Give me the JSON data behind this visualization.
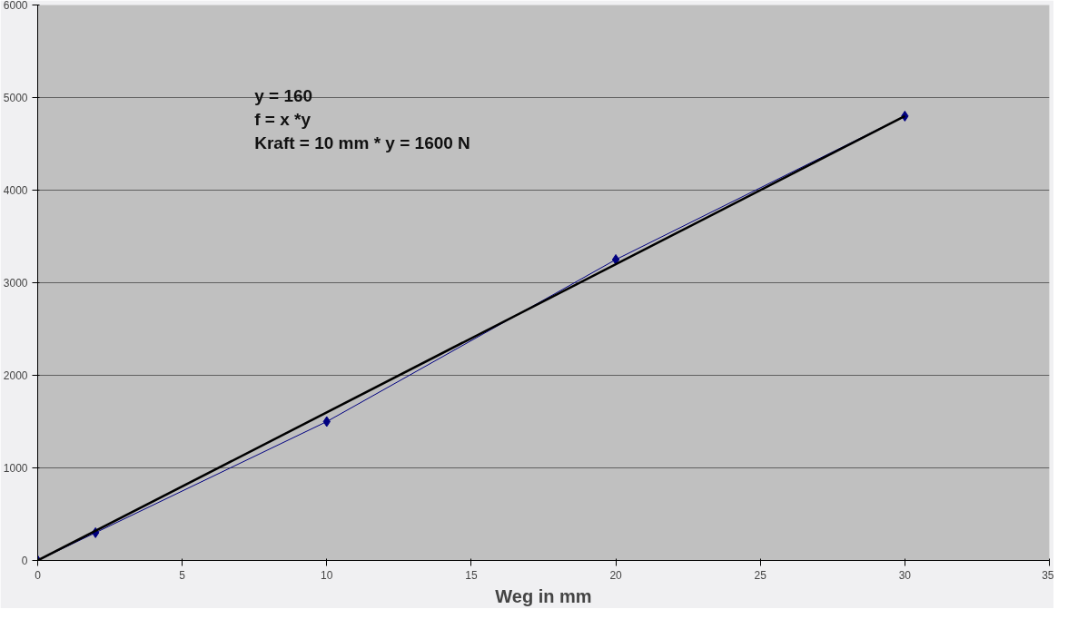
{
  "chart_data": {
    "type": "line",
    "xlabel": "Weg in mm",
    "annotations": [
      "y = 160",
      "f = x *y",
      "Kraft = 10 mm * y = 1600 N"
    ],
    "x": [
      0,
      2,
      10,
      20,
      30
    ],
    "series": [
      {
        "color": "#000080",
        "values": [
          0,
          300,
          1500,
          3250,
          4800
        ],
        "marker": "diamond"
      },
      {
        "type": "line",
        "color": "#000000",
        "x": [
          0,
          30
        ],
        "values": [
          0,
          4800
        ],
        "marker": "none"
      }
    ],
    "xlim": [
      0,
      35
    ],
    "xticks": [
      0,
      5,
      10,
      15,
      20,
      25,
      30,
      35
    ],
    "ylim": [
      0,
      6000
    ],
    "yticks": [
      0,
      1000,
      2000,
      3000,
      4000,
      5000,
      6000
    ],
    "grid": "y"
  }
}
